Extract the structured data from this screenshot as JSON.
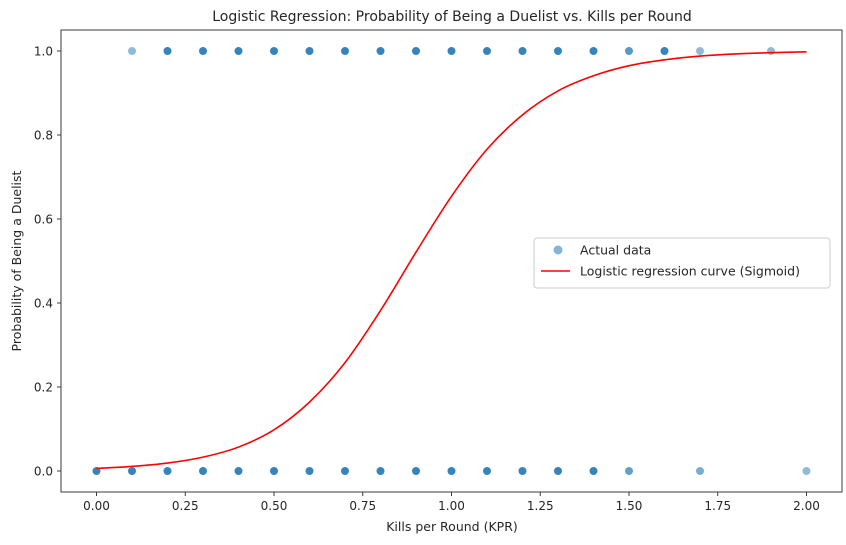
{
  "chart_data": {
    "type": "scatter",
    "title": "Logistic Regression: Probability of Being a Duelist vs. Kills per Round",
    "xlabel": "Kills per Round (KPR)",
    "ylabel": "Probability of Being a Duelist",
    "xlim": [
      -0.1,
      2.1
    ],
    "ylim": [
      -0.05,
      1.05
    ],
    "x_ticks": [
      0.0,
      0.25,
      0.5,
      0.75,
      1.0,
      1.25,
      1.5,
      1.75,
      2.0
    ],
    "x_tick_labels": [
      "0.00",
      "0.25",
      "0.50",
      "0.75",
      "1.00",
      "1.25",
      "1.50",
      "1.75",
      "2.00"
    ],
    "y_ticks": [
      0.0,
      0.2,
      0.4,
      0.6,
      0.8,
      1.0
    ],
    "y_tick_labels": [
      "0.0",
      "0.2",
      "0.4",
      "0.6",
      "0.8",
      "1.0"
    ],
    "grid": false,
    "legend_position": "center-right",
    "series": [
      {
        "name": "Actual data",
        "kind": "scatter",
        "color": "#1f77b4",
        "points": [
          {
            "x": 0.1,
            "y": 1,
            "alpha": 0.5
          },
          {
            "x": 0.2,
            "y": 1,
            "alpha": 0.9
          },
          {
            "x": 0.3,
            "y": 1,
            "alpha": 0.9
          },
          {
            "x": 0.4,
            "y": 1,
            "alpha": 0.9
          },
          {
            "x": 0.5,
            "y": 1,
            "alpha": 0.9
          },
          {
            "x": 0.6,
            "y": 1,
            "alpha": 0.9
          },
          {
            "x": 0.7,
            "y": 1,
            "alpha": 0.9
          },
          {
            "x": 0.8,
            "y": 1,
            "alpha": 0.9
          },
          {
            "x": 0.9,
            "y": 1,
            "alpha": 0.9
          },
          {
            "x": 1.0,
            "y": 1,
            "alpha": 0.9
          },
          {
            "x": 1.1,
            "y": 1,
            "alpha": 0.9
          },
          {
            "x": 1.2,
            "y": 1,
            "alpha": 0.9
          },
          {
            "x": 1.3,
            "y": 1,
            "alpha": 0.9
          },
          {
            "x": 1.4,
            "y": 1,
            "alpha": 0.9
          },
          {
            "x": 1.5,
            "y": 1,
            "alpha": 0.75
          },
          {
            "x": 1.6,
            "y": 1,
            "alpha": 0.9
          },
          {
            "x": 1.7,
            "y": 1,
            "alpha": 0.5
          },
          {
            "x": 1.9,
            "y": 1,
            "alpha": 0.5
          },
          {
            "x": 0.0,
            "y": 0,
            "alpha": 0.9
          },
          {
            "x": 0.1,
            "y": 0,
            "alpha": 0.9
          },
          {
            "x": 0.2,
            "y": 0,
            "alpha": 0.9
          },
          {
            "x": 0.3,
            "y": 0,
            "alpha": 0.9
          },
          {
            "x": 0.4,
            "y": 0,
            "alpha": 0.9
          },
          {
            "x": 0.5,
            "y": 0,
            "alpha": 0.9
          },
          {
            "x": 0.6,
            "y": 0,
            "alpha": 0.9
          },
          {
            "x": 0.7,
            "y": 0,
            "alpha": 0.9
          },
          {
            "x": 0.8,
            "y": 0,
            "alpha": 0.9
          },
          {
            "x": 0.9,
            "y": 0,
            "alpha": 0.9
          },
          {
            "x": 1.0,
            "y": 0,
            "alpha": 0.9
          },
          {
            "x": 1.1,
            "y": 0,
            "alpha": 0.9
          },
          {
            "x": 1.2,
            "y": 0,
            "alpha": 0.9
          },
          {
            "x": 1.3,
            "y": 0,
            "alpha": 0.9
          },
          {
            "x": 1.4,
            "y": 0,
            "alpha": 0.9
          },
          {
            "x": 1.5,
            "y": 0,
            "alpha": 0.7
          },
          {
            "x": 1.7,
            "y": 0,
            "alpha": 0.6
          },
          {
            "x": 2.0,
            "y": 0,
            "alpha": 0.5
          }
        ]
      },
      {
        "name": "Logistic regression curve (Sigmoid)",
        "kind": "line",
        "color": "#ff0000",
        "x": [
          0.0,
          0.1,
          0.2,
          0.3,
          0.4,
          0.5,
          0.6,
          0.7,
          0.8,
          0.9,
          1.0,
          1.1,
          1.2,
          1.3,
          1.4,
          1.5,
          1.6,
          1.7,
          1.8,
          1.9,
          2.0
        ],
        "y": [
          0.006,
          0.011,
          0.019,
          0.033,
          0.057,
          0.098,
          0.164,
          0.258,
          0.382,
          0.521,
          0.654,
          0.766,
          0.848,
          0.905,
          0.941,
          0.965,
          0.979,
          0.988,
          0.993,
          0.996,
          0.998
        ]
      }
    ]
  }
}
